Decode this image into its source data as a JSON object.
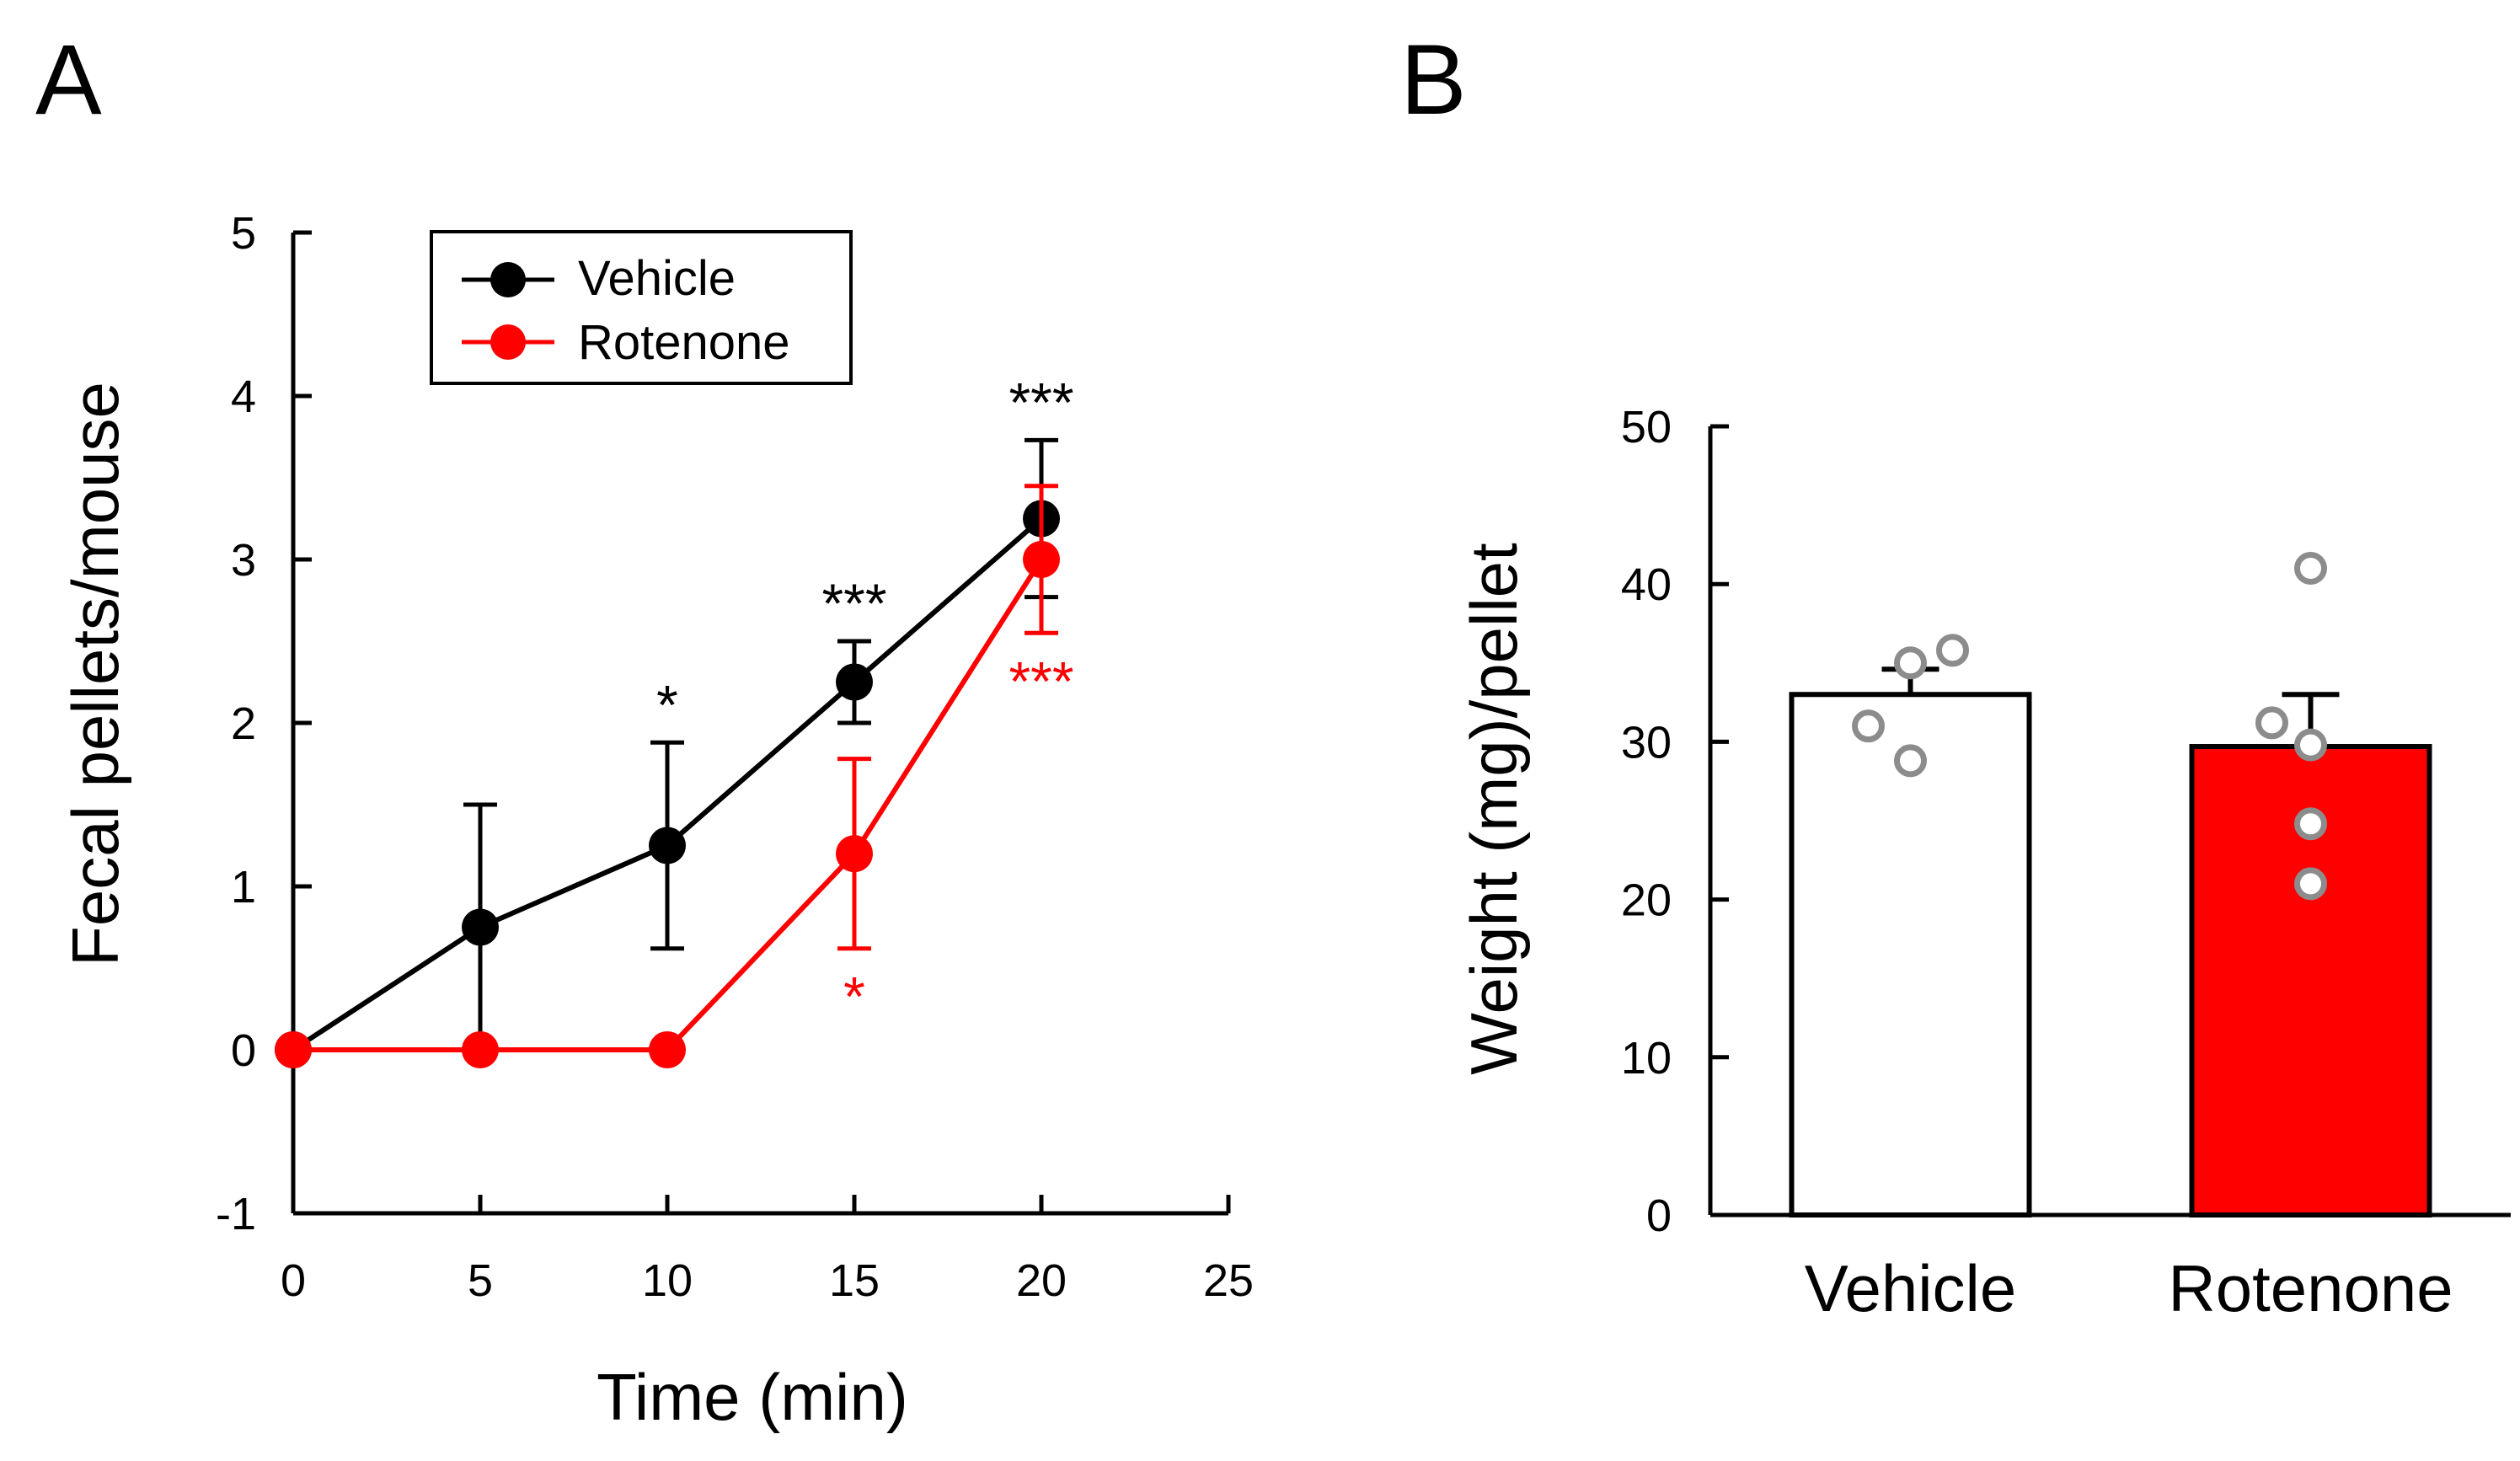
{
  "panels": {
    "a": {
      "letter": "A"
    },
    "b": {
      "letter": "B"
    }
  },
  "colors": {
    "vehicle": "#000000",
    "rotenone": "#ff0000",
    "dot_outline": "#8c8c8c"
  },
  "chart_data": [
    {
      "type": "line",
      "panel": "A",
      "xlabel": "Time (min)",
      "ylabel": "Fecal pellets/mouse",
      "xlim": [
        0,
        25
      ],
      "ylim": [
        -1,
        5
      ],
      "xticks": [
        0,
        5,
        10,
        15,
        20,
        25
      ],
      "yticks": [
        -1,
        0,
        1,
        2,
        3,
        4,
        5
      ],
      "grid": false,
      "legend": "top-left",
      "x": [
        0,
        5,
        10,
        15,
        20
      ],
      "series": [
        {
          "name": "Vehicle",
          "color": "#000000",
          "values": [
            0,
            0.75,
            1.25,
            2.25,
            3.25
          ],
          "error": [
            0,
            0.75,
            0.63,
            0.25,
            0.48
          ],
          "significance": [
            {
              "x": 10,
              "label": "*",
              "position": "above"
            },
            {
              "x": 15,
              "label": "***",
              "position": "above"
            },
            {
              "x": 20,
              "label": "***",
              "position": "above"
            }
          ]
        },
        {
          "name": "Rotenone",
          "color": "#ff0000",
          "values": [
            0,
            0,
            0,
            1.2,
            3.0
          ],
          "error": [
            0,
            0,
            0,
            0.58,
            0.45
          ],
          "significance": [
            {
              "x": 15,
              "label": "*",
              "position": "below"
            },
            {
              "x": 20,
              "label": "***",
              "position": "below"
            }
          ]
        }
      ]
    },
    {
      "type": "bar",
      "panel": "B",
      "xlabel": "",
      "ylabel": "Weight (mg)/pellet",
      "ylim": [
        0,
        50
      ],
      "yticks": [
        0,
        10,
        20,
        30,
        40,
        50
      ],
      "grid": false,
      "categories": [
        "Vehicle",
        "Rotenone"
      ],
      "values": [
        33,
        29.7
      ],
      "error": [
        1.6,
        3.3
      ],
      "bar_colors": [
        "#ffffff",
        "#ff0000"
      ],
      "points": [
        [
          35,
          35.8,
          31,
          28.8
        ],
        [
          41,
          31.2,
          29.8,
          24.8,
          21
        ]
      ]
    }
  ]
}
